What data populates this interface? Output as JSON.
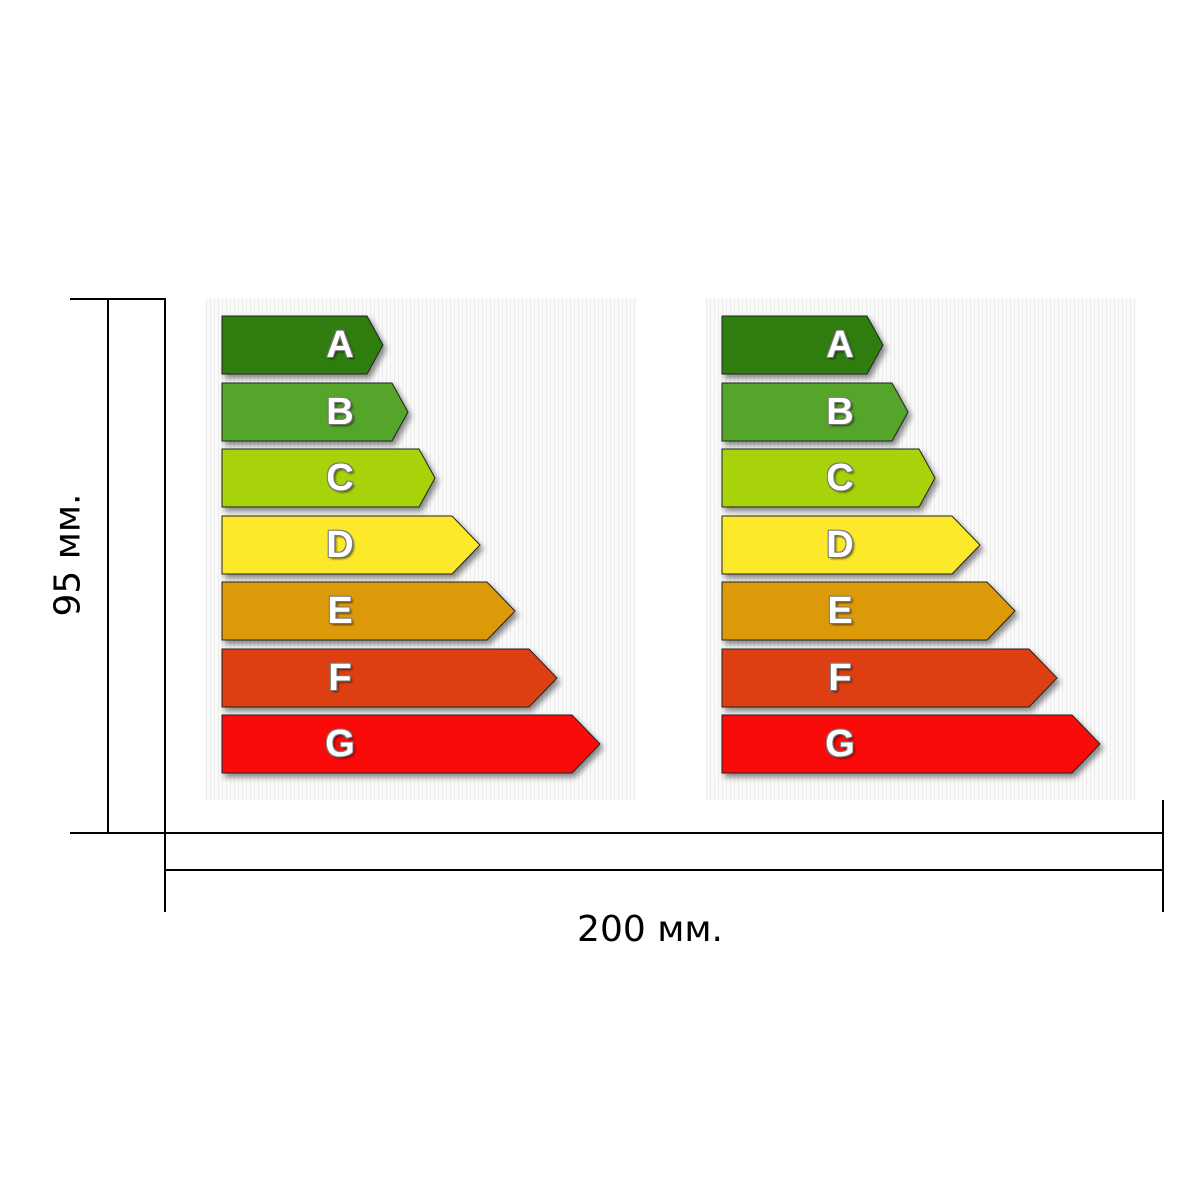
{
  "dimensions": {
    "height_label": "95 мм.",
    "width_label": "200 мм."
  },
  "rating_classes": [
    {
      "letter": "A",
      "color": "#2f7d0f"
    },
    {
      "letter": "B",
      "color": "#54a52a"
    },
    {
      "letter": "C",
      "color": "#a8d30b"
    },
    {
      "letter": "D",
      "color": "#fce92a"
    },
    {
      "letter": "E",
      "color": "#dd9a08"
    },
    {
      "letter": "F",
      "color": "#dd3f12"
    },
    {
      "letter": "G",
      "color": "#fb0a0a"
    }
  ],
  "label_count": 2
}
